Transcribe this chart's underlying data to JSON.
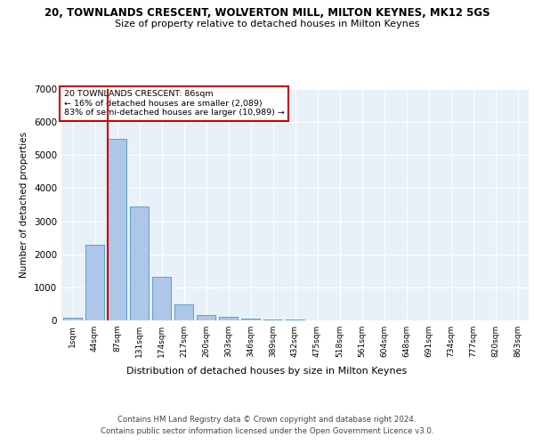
{
  "title_line1": "20, TOWNLANDS CRESCENT, WOLVERTON MILL, MILTON KEYNES, MK12 5GS",
  "title_line2": "Size of property relative to detached houses in Milton Keynes",
  "xlabel": "Distribution of detached houses by size in Milton Keynes",
  "ylabel": "Number of detached properties",
  "bar_labels": [
    "1sqm",
    "44sqm",
    "87sqm",
    "131sqm",
    "174sqm",
    "217sqm",
    "260sqm",
    "303sqm",
    "346sqm",
    "389sqm",
    "432sqm",
    "475sqm",
    "518sqm",
    "561sqm",
    "604sqm",
    "648sqm",
    "691sqm",
    "734sqm",
    "777sqm",
    "820sqm",
    "863sqm"
  ],
  "bar_values": [
    80,
    2280,
    5480,
    3450,
    1320,
    480,
    155,
    95,
    65,
    40,
    15,
    8,
    4,
    2,
    1,
    1,
    0,
    0,
    0,
    0,
    0
  ],
  "bar_color": "#aec6e8",
  "bar_edge_color": "#5a9fd4",
  "vline_x_index": 2,
  "vline_color": "#cc0000",
  "annotation_title": "20 TOWNLANDS CRESCENT: 86sqm",
  "annotation_line2": "← 16% of detached houses are smaller (2,089)",
  "annotation_line3": "83% of semi-detached houses are larger (10,989) →",
  "annotation_box_color": "#ffffff",
  "annotation_box_edge": "#cc0000",
  "ylim": [
    0,
    7000
  ],
  "yticks": [
    0,
    1000,
    2000,
    3000,
    4000,
    5000,
    6000,
    7000
  ],
  "bg_color": "#e8f0f8",
  "footer_line1": "Contains HM Land Registry data © Crown copyright and database right 2024.",
  "footer_line2": "Contains public sector information licensed under the Open Government Licence v3.0."
}
